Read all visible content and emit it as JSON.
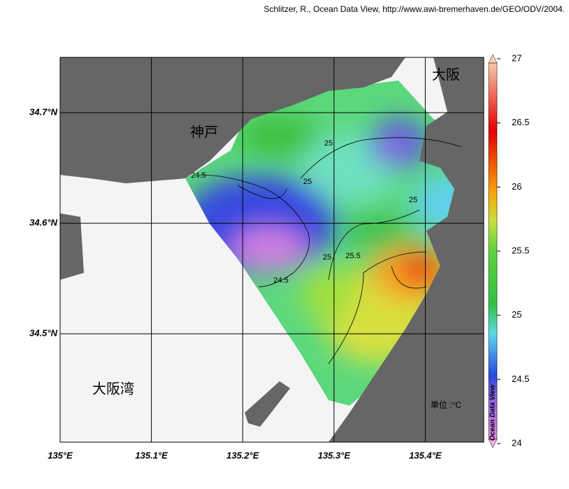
{
  "credit": "Schlitzer, R., Ocean Data View, http://www.awi-bremerhaven.de/GEO/ODV/2004.",
  "places": {
    "kobe": "神戸",
    "osaka": "大阪",
    "osaka_bay": "大阪湾"
  },
  "unit_label": "単位 :°C",
  "map": {
    "xlim": [
      135,
      135.464
    ],
    "ylim": [
      34.402,
      34.75
    ],
    "xticks": [
      {
        "value": 135,
        "label": "135°E"
      },
      {
        "value": 135.1,
        "label": "135.1°E"
      },
      {
        "value": 135.2,
        "label": "135.2°E"
      },
      {
        "value": 135.3,
        "label": "135.3°E"
      },
      {
        "value": 135.4,
        "label": "135.4°E"
      }
    ],
    "yticks": [
      {
        "value": 34.5,
        "label": "34.5°N"
      },
      {
        "value": 34.6,
        "label": "34.6°N"
      },
      {
        "value": 34.7,
        "label": "34.7°N"
      }
    ],
    "grid": true
  },
  "colorbar": {
    "title": "Ocean Data View",
    "range": [
      24,
      27
    ],
    "ticks": [
      24,
      24.5,
      25,
      25.5,
      26,
      26.5,
      27
    ]
  },
  "contour_labels": [
    25,
    25,
    25,
    25,
    24.5,
    24.5,
    25.5
  ]
}
